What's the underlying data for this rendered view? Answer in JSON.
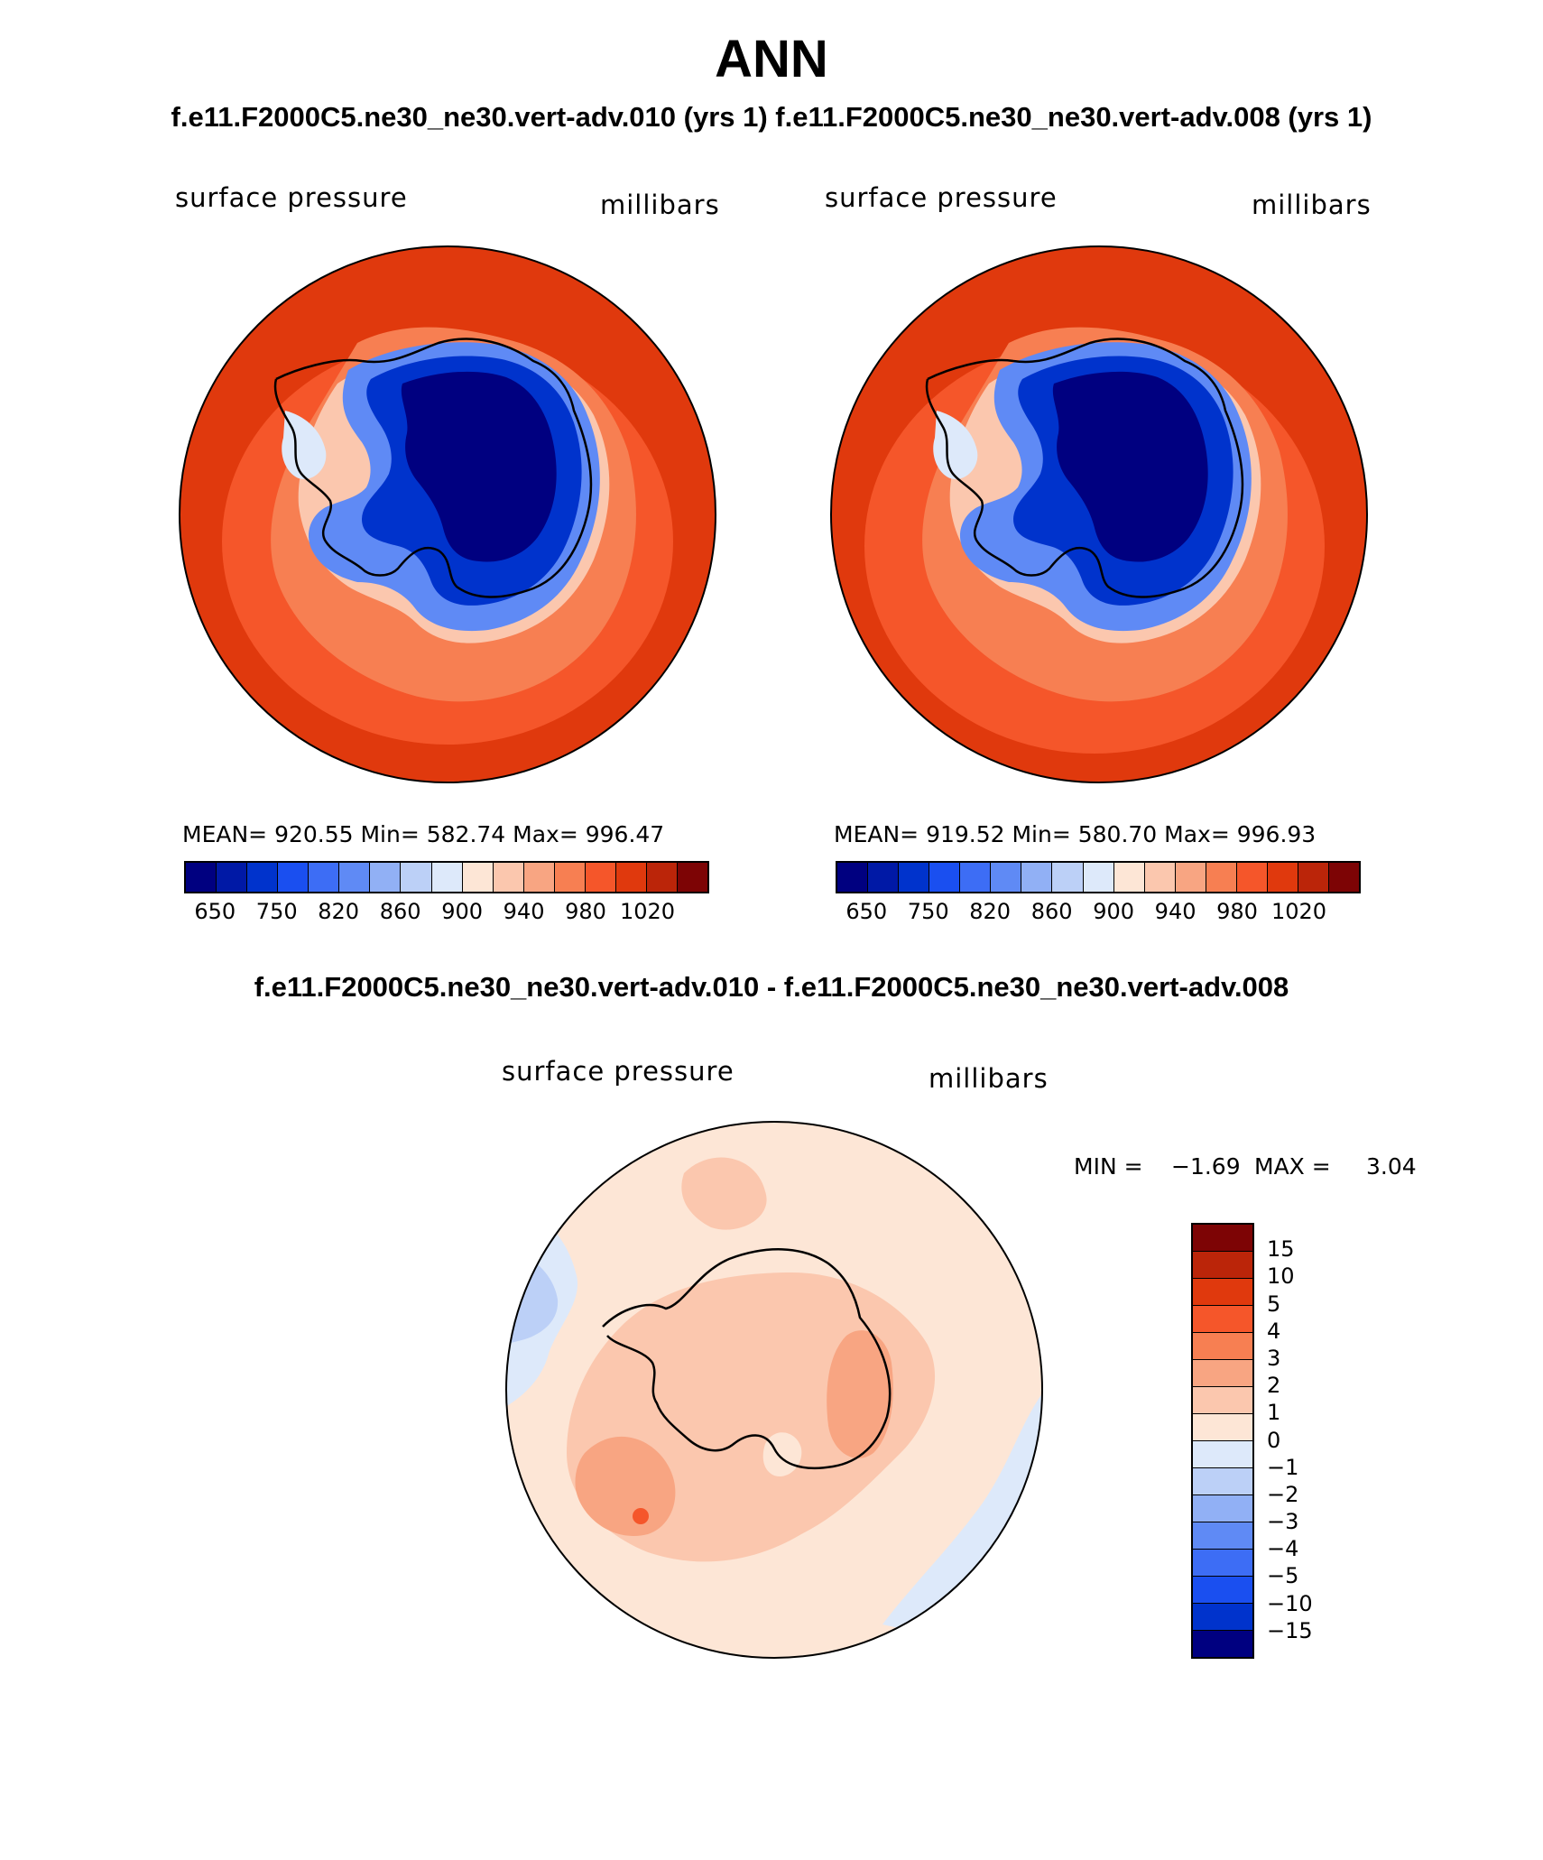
{
  "title": "ANN",
  "subtitle": "f.e11.F2000C5.ne30_ne30.vert-adv.010 (yrs 1) f.e11.F2000C5.ne30_ne30.vert-adv.008 (yrs 1)",
  "panels": [
    {
      "variable": "surface pressure",
      "units": "millibars",
      "stats": "MEAN= 920.55   Min= 582.74   Max= 996.47"
    },
    {
      "variable": "surface pressure",
      "units": "millibars",
      "stats": "MEAN= 919.52   Min= 580.70   Max= 996.93"
    }
  ],
  "colorbar": {
    "colors": [
      "#000080",
      "#0019a6",
      "#0033cc",
      "#1a4ff0",
      "#3d6df5",
      "#5f8af5",
      "#91b0f5",
      "#bcd0f7",
      "#dde9fa",
      "#fde6d6",
      "#fbc7ae",
      "#f8a582",
      "#f77f52",
      "#f5562a",
      "#e0390d",
      "#bb2509",
      "#7d0405"
    ],
    "labels": [
      "650",
      "750",
      "820",
      "860",
      "900",
      "940",
      "980",
      "1020"
    ]
  },
  "diff": {
    "title": "f.e11.F2000C5.ne30_ne30.vert-adv.010 - f.e11.F2000C5.ne30_ne30.vert-adv.008",
    "variable": "surface pressure",
    "units": "millibars",
    "min_label": "MIN =",
    "min_value": "−1.69",
    "max_label": "MAX =",
    "max_value": "3.04",
    "colorbar_colors": [
      "#7d0405",
      "#bb2509",
      "#e0390d",
      "#f5562a",
      "#f77f52",
      "#f8a582",
      "#fbc7ae",
      "#fde6d6",
      "#dde9fa",
      "#bcd0f7",
      "#91b0f5",
      "#5f8af5",
      "#3d6df5",
      "#1a4ff0",
      "#0033cc",
      "#000080"
    ],
    "colorbar_labels": [
      "15",
      "10",
      "5",
      "4",
      "3",
      "2",
      "1",
      "0",
      "−1",
      "−2",
      "−3",
      "−4",
      "−5",
      "−10",
      "−15"
    ]
  }
}
